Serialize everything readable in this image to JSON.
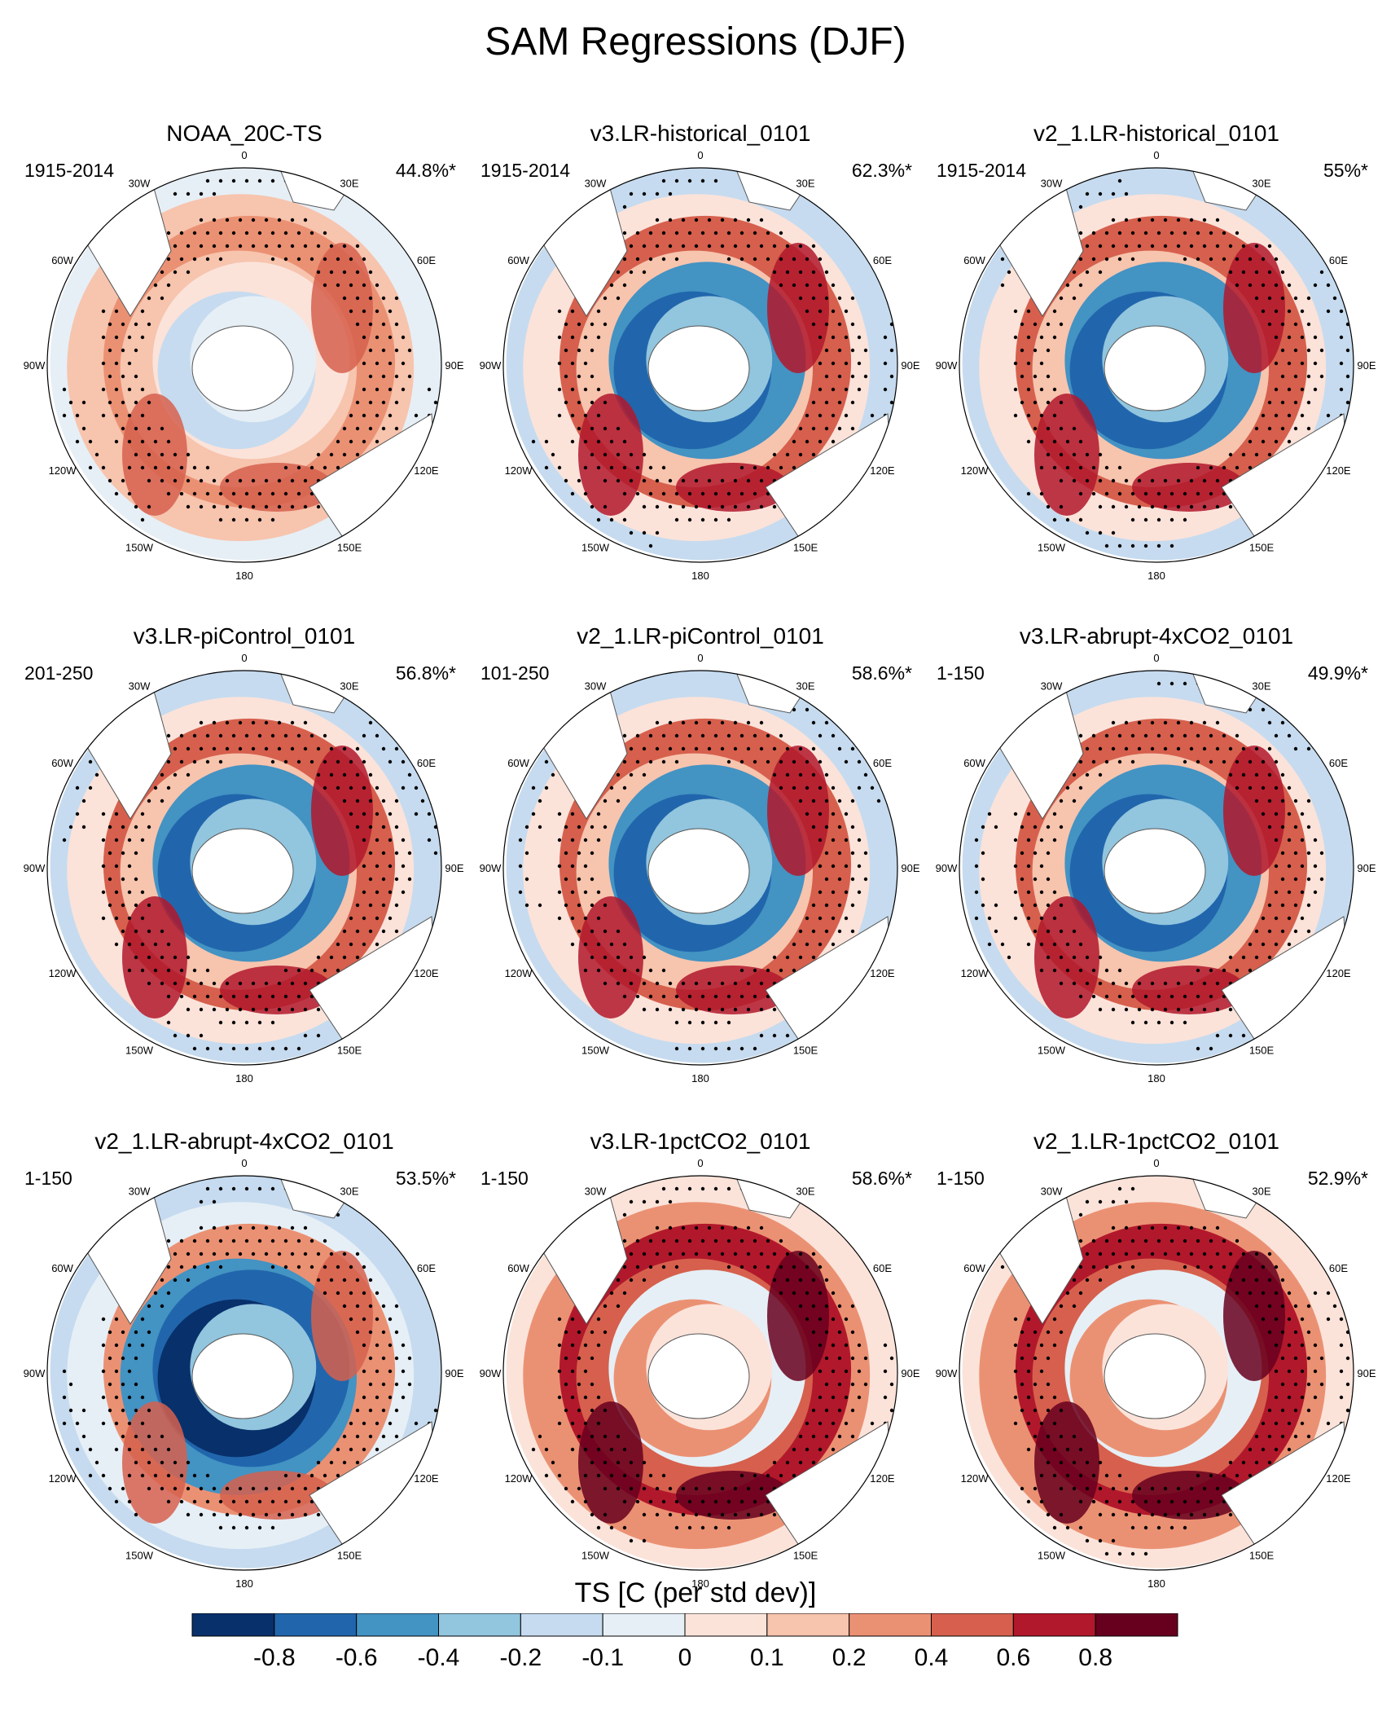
{
  "title": "SAM Regressions (DJF)",
  "chart_data": {
    "type": "heatmap",
    "projection": "south polar stereographic",
    "variable_label": "TS [C (per std dev)]",
    "stippling": "statistically significant regions",
    "longitude_labels": [
      "0",
      "30E",
      "60E",
      "90E",
      "120E",
      "150E",
      "180",
      "150W",
      "120W",
      "90W",
      "60W",
      "30W"
    ],
    "colorbar": {
      "tick_labels": [
        "-0.8",
        "-0.6",
        "-0.4",
        "-0.2",
        "-0.1",
        "0",
        "0.1",
        "0.2",
        "0.4",
        "0.6",
        "0.8"
      ],
      "colors": [
        "#08306b",
        "#2166ac",
        "#4393c3",
        "#92c5de",
        "#c6dbef",
        "#e6eff6",
        "#fbe3da",
        "#f7c4ae",
        "#eb9173",
        "#d6604d",
        "#b2182b",
        "#67001f"
      ]
    },
    "panels": [
      {
        "title": "NOAA_20C-TS",
        "years": "1915-2014",
        "explained_variance": "44.8%*",
        "pattern": "warm"
      },
      {
        "title": "v3.LR-historical_0101",
        "years": "1915-2014",
        "explained_variance": "62.3%*",
        "pattern": "mixed"
      },
      {
        "title": "v2_1.LR-historical_0101",
        "years": "1915-2014",
        "explained_variance": "55%*",
        "pattern": "mixed"
      },
      {
        "title": "v3.LR-piControl_0101",
        "years": "201-250",
        "explained_variance": "56.8%*",
        "pattern": "mixed"
      },
      {
        "title": "v2_1.LR-piControl_0101",
        "years": "101-250",
        "explained_variance": "58.6%*",
        "pattern": "mixed"
      },
      {
        "title": "v3.LR-abrupt-4xCO2_0101",
        "years": "1-150",
        "explained_variance": "49.9%*",
        "pattern": "mixed"
      },
      {
        "title": "v2_1.LR-abrupt-4xCO2_0101",
        "years": "1-150",
        "explained_variance": "53.5%*",
        "pattern": "cold"
      },
      {
        "title": "v3.LR-1pctCO2_0101",
        "years": "1-150",
        "explained_variance": "58.6%*",
        "pattern": "hot"
      },
      {
        "title": "v2_1.LR-1pctCO2_0101",
        "years": "1-150",
        "explained_variance": "52.9%*",
        "pattern": "hot"
      }
    ]
  }
}
